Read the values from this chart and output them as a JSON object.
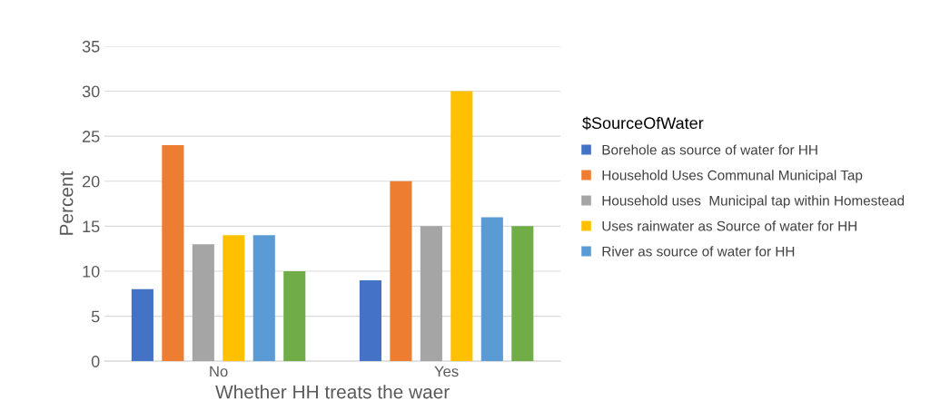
{
  "chart_data": {
    "type": "bar",
    "xlabel": "Whether HH treats the waer",
    "ylabel": "Percent",
    "legend_title": "$SourceOfWater",
    "categories": [
      "No",
      "Yes"
    ],
    "series": [
      {
        "name": "Borehole as source of water for HH",
        "color": "#4472c4",
        "values": [
          8,
          9
        ]
      },
      {
        "name": "Household Uses Communal Municipal Tap",
        "color": "#ed7d31",
        "values": [
          24,
          20
        ]
      },
      {
        "name": "Household uses  Municipal tap within Homestead",
        "color": "#a5a5a5",
        "values": [
          13,
          15
        ]
      },
      {
        "name": "Uses rainwater as Source of water for HH",
        "color": "#ffc000",
        "values": [
          14,
          30
        ]
      },
      {
        "name": "River as source of water for HH",
        "color": "#5b9bd5",
        "values": [
          14,
          16
        ]
      },
      {
        "color": "#70ad47",
        "values": [
          10,
          15
        ]
      }
    ],
    "ylim": [
      0,
      35
    ],
    "yticks": [
      0,
      5,
      10,
      15,
      20,
      25,
      30,
      35
    ],
    "grid": "y",
    "legend": "right"
  }
}
